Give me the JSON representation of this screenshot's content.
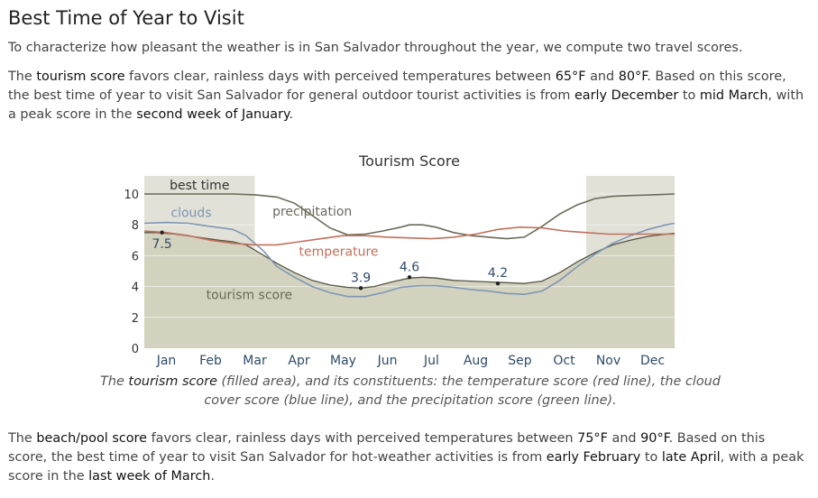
{
  "section": {
    "title": "Best Time of Year to Visit",
    "intro": "To characterize how pleasant the weather is in San Salvador throughout the year, we compute two travel scores."
  },
  "tourism": {
    "p1": "The ",
    "k1": "tourism score",
    "p2": " favors clear, rainless days with perceived temperatures between ",
    "k2": "65°F",
    "p3": " and ",
    "k3": "80°F",
    "p4": ". Based on this score, the best time of year to visit San Salvador for general outdoor tourist activities is from ",
    "k4": "early December",
    "p5": " to ",
    "k5": "mid March",
    "p6": ", with a peak score in the ",
    "k6": "second week of January",
    "p7": "."
  },
  "caption": {
    "c1": "The ",
    "k1": "tourism score",
    "c2": " (filled area), and its constituents: the temperature score (red line), the cloud cover score (blue line), and the precipitation score (green line)."
  },
  "beach": {
    "p1": "The ",
    "k1": "beach/pool score",
    "p2": " favors clear, rainless days with perceived temperatures between ",
    "k2": "75°F",
    "p3": " and ",
    "k3": "90°F",
    "p4": ". Based on this score, the best time of year to visit San Salvador for hot-weather activities is from ",
    "k4": "early February",
    "p5": " to ",
    "k5": "late April",
    "p6": ", with a peak score in the ",
    "k6": "last week of March",
    "p7": "."
  },
  "colors": {
    "area": "#d3d2bf",
    "best_time": "#e1e1d7",
    "temperature": "#c0705c",
    "clouds": "#7f96b5",
    "precipitation": "#6a6a5a",
    "tourism_line": "#555545"
  },
  "chart_data": {
    "type": "area",
    "title": "Tourism Score",
    "xlabel": "",
    "ylabel": "",
    "ylim": [
      0,
      10
    ],
    "yticks": [
      0,
      2,
      4,
      6,
      8,
      10
    ],
    "grid": "horizontal",
    "months": [
      "Jan",
      "Feb",
      "Mar",
      "Apr",
      "May",
      "Jun",
      "Jul",
      "Aug",
      "Sep",
      "Oct",
      "Nov",
      "Dec"
    ],
    "best_time_label": "best time",
    "best_time_ranges": [
      [
        1,
        3.5
      ],
      [
        11.0,
        13.0
      ]
    ],
    "series": [
      {
        "name": "tourism score",
        "role": "area",
        "x": [
          1.0,
          1.3,
          1.7,
          2.2,
          2.7,
          3.0,
          3.3,
          3.6,
          4.0,
          4.4,
          4.8,
          5.2,
          5.6,
          5.9,
          6.2,
          6.6,
          7.0,
          7.3,
          7.6,
          8.0,
          8.4,
          8.8,
          9.2,
          9.6,
          10.0,
          10.4,
          10.8,
          11.2,
          11.6,
          12.0,
          12.4,
          12.8,
          13.0
        ],
        "y": [
          7.5,
          7.5,
          7.4,
          7.2,
          7.0,
          6.9,
          6.7,
          6.2,
          5.5,
          4.9,
          4.4,
          4.1,
          3.95,
          3.9,
          4.0,
          4.3,
          4.55,
          4.6,
          4.55,
          4.4,
          4.35,
          4.3,
          4.25,
          4.2,
          4.35,
          4.9,
          5.6,
          6.2,
          6.7,
          7.0,
          7.25,
          7.4,
          7.45
        ]
      },
      {
        "name": "temperature",
        "role": "line",
        "x": [
          1.0,
          1.5,
          2.0,
          2.5,
          3.0,
          3.5,
          4.0,
          4.5,
          5.0,
          5.5,
          6.0,
          6.5,
          7.0,
          7.5,
          8.0,
          8.5,
          9.0,
          9.5,
          10.0,
          10.5,
          11.0,
          11.5,
          12.0,
          12.5,
          13.0
        ],
        "y": [
          7.6,
          7.5,
          7.3,
          7.0,
          6.8,
          6.7,
          6.7,
          6.9,
          7.1,
          7.3,
          7.3,
          7.2,
          7.15,
          7.1,
          7.2,
          7.4,
          7.7,
          7.85,
          7.8,
          7.6,
          7.5,
          7.4,
          7.4,
          7.4,
          7.4
        ]
      },
      {
        "name": "clouds",
        "role": "line",
        "x": [
          1.0,
          1.5,
          2.0,
          2.5,
          3.0,
          3.3,
          3.7,
          4.0,
          4.4,
          4.8,
          5.2,
          5.6,
          6.0,
          6.4,
          6.8,
          7.2,
          7.6,
          8.0,
          8.4,
          8.8,
          9.2,
          9.6,
          10.0,
          10.4,
          10.8,
          11.2,
          11.6,
          12.0,
          12.4,
          12.8,
          13.0
        ],
        "y": [
          8.1,
          8.15,
          8.1,
          7.9,
          7.7,
          7.3,
          6.3,
          5.3,
          4.6,
          4.0,
          3.6,
          3.35,
          3.35,
          3.6,
          3.95,
          4.05,
          4.05,
          3.95,
          3.8,
          3.7,
          3.55,
          3.5,
          3.7,
          4.4,
          5.3,
          6.1,
          6.8,
          7.3,
          7.7,
          8.0,
          8.1
        ]
      },
      {
        "name": "precipitation",
        "role": "line",
        "x": [
          1.0,
          1.5,
          2.0,
          2.5,
          3.0,
          3.5,
          4.0,
          4.4,
          4.8,
          5.2,
          5.6,
          6.0,
          6.4,
          6.8,
          7.0,
          7.3,
          7.6,
          8.0,
          8.4,
          8.8,
          9.2,
          9.6,
          10.0,
          10.4,
          10.8,
          11.2,
          11.6,
          12.0,
          12.5,
          13.0
        ],
        "y": [
          10.0,
          10.0,
          10.0,
          10.0,
          10.0,
          9.95,
          9.8,
          9.4,
          8.6,
          7.8,
          7.35,
          7.4,
          7.6,
          7.85,
          8.0,
          8.0,
          7.85,
          7.5,
          7.3,
          7.2,
          7.1,
          7.2,
          7.9,
          8.7,
          9.3,
          9.7,
          9.85,
          9.9,
          9.95,
          10.0
        ]
      }
    ],
    "annotations": [
      {
        "label": "7.5",
        "x": 1.4,
        "y": 7.5
      },
      {
        "label": "3.9",
        "x": 5.9,
        "y": 3.9
      },
      {
        "label": "4.6",
        "x": 7.0,
        "y": 4.6
      },
      {
        "label": "4.2",
        "x": 9.0,
        "y": 4.2
      }
    ],
    "series_labels": [
      {
        "label": "clouds",
        "series": "clouds",
        "x": 1.6,
        "y": 8.5
      },
      {
        "label": "precipitation",
        "series": "precipitation",
        "x": 3.9,
        "y": 8.6
      },
      {
        "label": "temperature",
        "series": "temperature",
        "x": 4.5,
        "y": 6.0
      },
      {
        "label": "tourism score",
        "series": "tourism score",
        "x": 2.4,
        "y": 3.2
      }
    ]
  }
}
